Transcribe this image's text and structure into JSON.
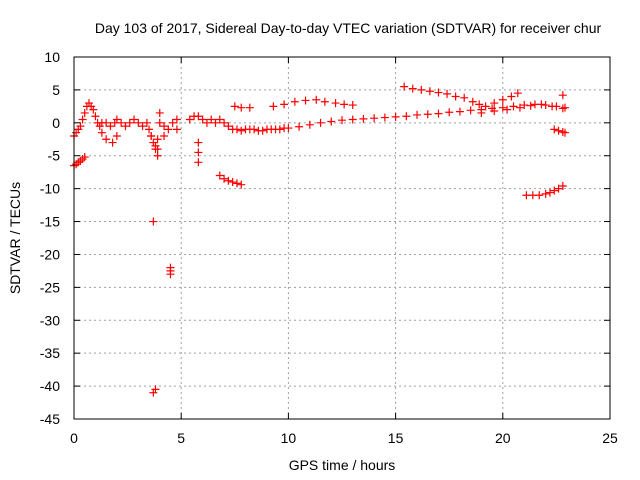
{
  "chart_data": {
    "type": "scatter",
    "title": "Day 103 of 2017, Sidereal Day-to-day VTEC variation (SDTVAR) for receiver chur",
    "xlabel": "GPS time / hours",
    "ylabel": "SDTVAR / TECUs",
    "xlim": [
      0,
      25
    ],
    "ylim": [
      -45,
      10
    ],
    "xticks": [
      0,
      5,
      10,
      15,
      20,
      25
    ],
    "yticks": [
      10,
      5,
      0,
      -5,
      -10,
      -15,
      -20,
      -25,
      -30,
      -35,
      -40,
      -45
    ],
    "xtick_labels": [
      "0",
      "5",
      "10",
      "15",
      "20",
      "25"
    ],
    "ytick_labels": [
      "10",
      "5",
      "0",
      "-5",
      "-10",
      "-15",
      "-20",
      "-25",
      "-30",
      "-35",
      "-40",
      "-45"
    ],
    "grid": true,
    "marker": "+",
    "color": "#ff0000",
    "series": [
      {
        "name": "SDTVAR",
        "x": [
          0.0,
          0.1,
          0.2,
          0.3,
          0.4,
          0.5,
          0.6,
          0.7,
          0.8,
          0.9,
          1.0,
          1.1,
          1.2,
          1.3,
          1.5,
          1.7,
          1.9,
          2.0,
          2.2,
          2.4,
          2.6,
          2.8,
          3.0,
          3.2,
          3.4,
          3.5,
          3.6,
          3.7,
          3.8,
          3.9,
          4.0,
          4.2,
          4.4,
          4.6,
          4.8,
          5.4,
          5.6,
          5.8,
          6.0,
          6.2,
          6.4,
          6.6,
          6.8,
          7.0,
          7.2,
          7.4,
          7.6,
          7.8,
          8.0,
          8.2,
          8.4,
          8.6,
          8.8,
          9.0,
          9.2,
          9.4,
          9.6,
          9.8,
          10.0,
          10.5,
          11.0,
          11.5,
          12.0,
          12.5,
          13.0,
          13.5,
          14.0,
          14.5,
          15.0,
          15.5,
          16.0,
          16.5,
          17.0,
          17.5,
          18.0,
          18.5,
          19.0,
          19.5,
          20.0,
          20.5,
          21.0,
          21.5,
          22.0,
          22.5,
          22.9,
          0.0,
          0.1,
          0.2,
          0.3,
          0.4,
          0.5,
          9.3,
          9.8,
          10.3,
          10.8,
          11.3,
          11.7,
          12.2,
          12.6,
          13.0,
          15.4,
          15.8,
          16.2,
          16.6,
          17.0,
          17.4,
          17.8,
          18.2,
          18.6,
          18.9,
          19.2,
          19.6,
          20.0,
          20.4,
          20.7,
          19.0,
          19.6,
          20.2,
          20.8,
          21.3,
          21.8,
          22.3,
          22.8,
          6.8,
          7.0,
          7.2,
          7.4,
          7.6,
          7.8,
          7.5,
          7.8,
          8.2,
          21.1,
          21.4,
          21.7,
          22.0,
          22.2,
          22.4,
          22.6,
          22.8,
          22.4,
          22.6,
          22.8,
          22.9,
          22.8,
          3.7,
          3.7,
          3.8,
          3.9,
          3.9,
          3.8,
          3.6,
          4.0,
          4.5,
          4.5,
          4.5,
          5.8,
          5.8,
          5.8,
          1.3,
          1.5,
          1.8,
          2.0,
          4.2,
          4.8
        ],
        "y": [
          -2.0,
          -1.5,
          -1.0,
          -0.5,
          0.5,
          1.5,
          2.5,
          3.0,
          2.5,
          2.0,
          1.0,
          0.0,
          -0.5,
          0.0,
          0.0,
          -0.5,
          0.0,
          0.5,
          0.0,
          -0.5,
          0.0,
          0.5,
          0.0,
          -0.5,
          0.0,
          -1.0,
          -2.0,
          -3.0,
          -4.0,
          -5.0,
          0.0,
          -0.5,
          -1.0,
          0.0,
          0.5,
          0.5,
          1.0,
          1.0,
          0.5,
          0.0,
          0.5,
          0.0,
          0.5,
          0.0,
          -0.5,
          -1.0,
          -1.0,
          -1.2,
          -1.0,
          -1.0,
          -1.0,
          -1.2,
          -1.2,
          -1.0,
          -1.0,
          -1.0,
          -1.0,
          -0.8,
          -0.8,
          -0.6,
          -0.3,
          0.0,
          0.2,
          0.4,
          0.5,
          0.6,
          0.7,
          0.8,
          0.9,
          1.0,
          1.2,
          1.3,
          1.4,
          1.6,
          1.7,
          1.9,
          2.0,
          2.2,
          2.3,
          2.5,
          2.7,
          2.8,
          2.7,
          2.5,
          2.3,
          -6.5,
          -6.3,
          -6.0,
          -5.8,
          -5.5,
          -5.2,
          2.5,
          2.8,
          3.2,
          3.4,
          3.5,
          3.2,
          3.0,
          2.8,
          2.7,
          5.5,
          5.2,
          5.0,
          4.8,
          4.6,
          4.4,
          4.0,
          3.8,
          3.2,
          2.8,
          2.5,
          3.0,
          3.5,
          4.0,
          4.5,
          1.5,
          1.8,
          2.0,
          2.3,
          2.6,
          2.8,
          2.5,
          2.2,
          -8.0,
          -8.5,
          -8.8,
          -9.0,
          -9.2,
          -9.4,
          2.5,
          2.3,
          2.3,
          -11.0,
          -11.0,
          -11.0,
          -10.8,
          -10.6,
          -10.3,
          -10.0,
          -9.6,
          -1.0,
          -1.2,
          -1.4,
          -1.5,
          4.2,
          -15.0,
          -41.0,
          -40.5,
          -2.5,
          -4.0,
          -3.5,
          -2.0,
          1.5,
          -22.5,
          -23.0,
          -22.0,
          -3.0,
          -4.5,
          -6.0,
          -1.5,
          -2.5,
          -3.0,
          -2.0,
          -2.0,
          -1.0
        ]
      }
    ]
  }
}
